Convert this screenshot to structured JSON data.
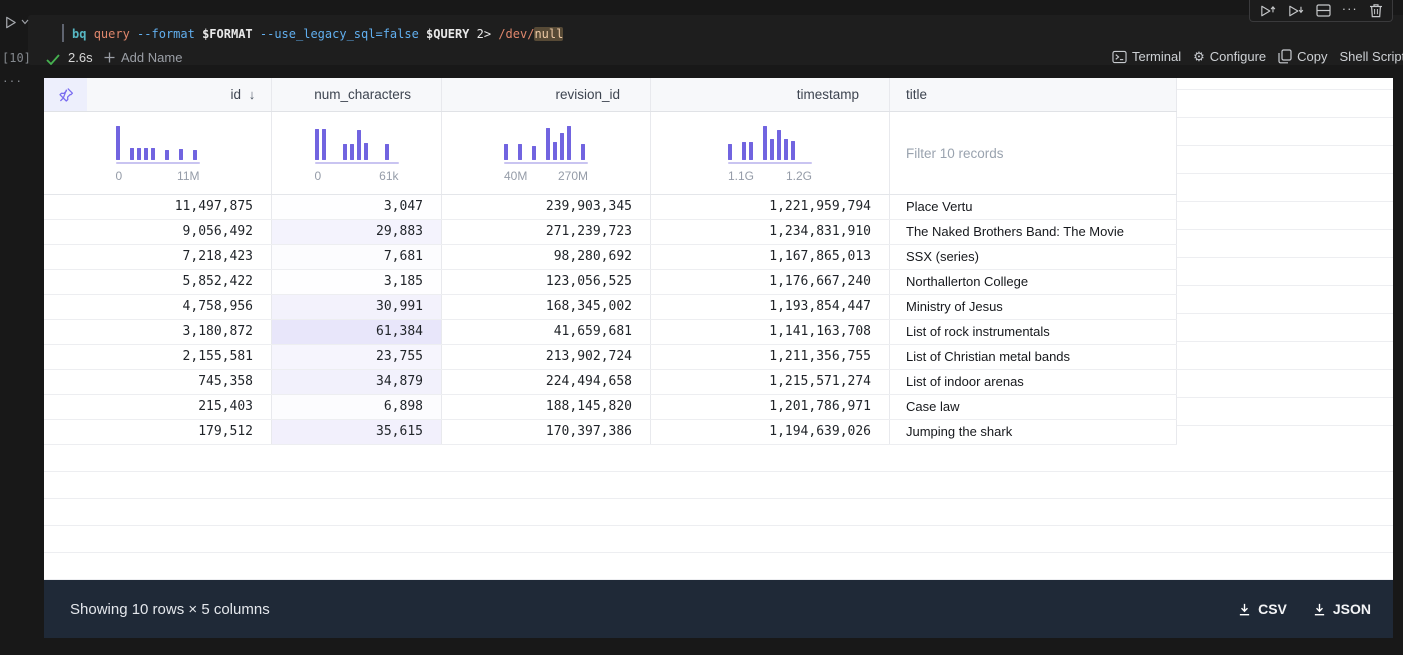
{
  "cell": {
    "execution_count": "[10]",
    "command_tokens": [
      {
        "t": "bq ",
        "c": "#56b6c2",
        "b": true
      },
      {
        "t": "query ",
        "c": "#e0876c"
      },
      {
        "t": "--format ",
        "c": "#61afef"
      },
      {
        "t": "$FORMAT ",
        "c": "#e9e9e9",
        "b": true
      },
      {
        "t": "--use_legacy_sql=false ",
        "c": "#61afef"
      },
      {
        "t": "$QUERY ",
        "c": "#e9e9e9",
        "b": true
      },
      {
        "t": "2> ",
        "c": "#e9e9e9"
      },
      {
        "t": "/dev/",
        "c": "#e0876c"
      },
      {
        "t": "null",
        "c": "#edc9a5",
        "hl": true
      }
    ],
    "status": {
      "duration": "2.6s",
      "add_name_label": "Add Name"
    },
    "actions": {
      "terminal": "Terminal",
      "configure": "Configure",
      "copy": "Copy",
      "shell_script": "Shell Script"
    }
  },
  "table": {
    "heat_column": "num_characters",
    "heat_max": 61384,
    "columns": [
      {
        "key": "id",
        "label": "id",
        "align": "right",
        "sort": "desc",
        "histogram": {
          "bars": [
            1,
            0,
            0.36,
            0.36,
            0.36,
            0.34,
            0,
            0.3,
            0,
            0.33,
            0,
            0.29
          ],
          "min": "0",
          "max": "11M"
        }
      },
      {
        "key": "num_characters",
        "label": "num_characters",
        "align": "right",
        "histogram": {
          "bars": [
            0.92,
            0.92,
            0,
            0,
            0.46,
            0.46,
            0.88,
            0.5,
            0,
            0,
            0.46,
            0
          ],
          "min": "0",
          "max": "61k"
        }
      },
      {
        "key": "revision_id",
        "label": "revision_id",
        "align": "right",
        "histogram": {
          "bars": [
            0.46,
            0,
            0.46,
            0,
            0.42,
            0,
            0.95,
            0.52,
            0.78,
            1,
            0,
            0.46
          ],
          "min": "40M",
          "max": "270M"
        }
      },
      {
        "key": "timestamp",
        "label": "timestamp",
        "align": "right",
        "histogram": {
          "bars": [
            0.46,
            0,
            0.52,
            0.52,
            0,
            1,
            0.62,
            0.88,
            0.62,
            0.56,
            0,
            0
          ],
          "min": "1.1G",
          "max": "1.2G"
        }
      },
      {
        "key": "title",
        "label": "title",
        "align": "left",
        "filter_placeholder": "Filter 10 records"
      }
    ],
    "rows": [
      {
        "id": "11,497,875",
        "num_characters": "3,047",
        "revision_id": "239,903,345",
        "timestamp": "1,221,959,794",
        "title": "Place Vertu"
      },
      {
        "id": "9,056,492",
        "num_characters": "29,883",
        "revision_id": "271,239,723",
        "timestamp": "1,234,831,910",
        "title": "The Naked Brothers Band: The Movie"
      },
      {
        "id": "7,218,423",
        "num_characters": "7,681",
        "revision_id": "98,280,692",
        "timestamp": "1,167,865,013",
        "title": "SSX (series)"
      },
      {
        "id": "5,852,422",
        "num_characters": "3,185",
        "revision_id": "123,056,525",
        "timestamp": "1,176,667,240",
        "title": "Northallerton College"
      },
      {
        "id": "4,758,956",
        "num_characters": "30,991",
        "revision_id": "168,345,002",
        "timestamp": "1,193,854,447",
        "title": "Ministry of Jesus"
      },
      {
        "id": "3,180,872",
        "num_characters": "61,384",
        "revision_id": "41,659,681",
        "timestamp": "1,141,163,708",
        "title": "List of rock instrumentals"
      },
      {
        "id": "2,155,581",
        "num_characters": "23,755",
        "revision_id": "213,902,724",
        "timestamp": "1,211,356,755",
        "title": "List of Christian metal bands"
      },
      {
        "id": "745,358",
        "num_characters": "34,879",
        "revision_id": "224,494,658",
        "timestamp": "1,215,571,274",
        "title": "List of indoor arenas"
      },
      {
        "id": "215,403",
        "num_characters": "6,898",
        "revision_id": "188,145,820",
        "timestamp": "1,201,786,971",
        "title": "Case law"
      },
      {
        "id": "179,512",
        "num_characters": "35,615",
        "revision_id": "170,397,386",
        "timestamp": "1,194,639,026",
        "title": "Jumping the shark"
      }
    ]
  },
  "footer": {
    "summary": "Showing 10 rows × 5 columns",
    "download_buttons": [
      "CSV",
      "JSON"
    ]
  },
  "colors": {
    "accent": "#7164e0",
    "heat_rgb": "113,100,224",
    "footer_bg": "#1f2937",
    "histogram_baseline": "#c9c4f1",
    "pin_bg": "#edeffc"
  }
}
